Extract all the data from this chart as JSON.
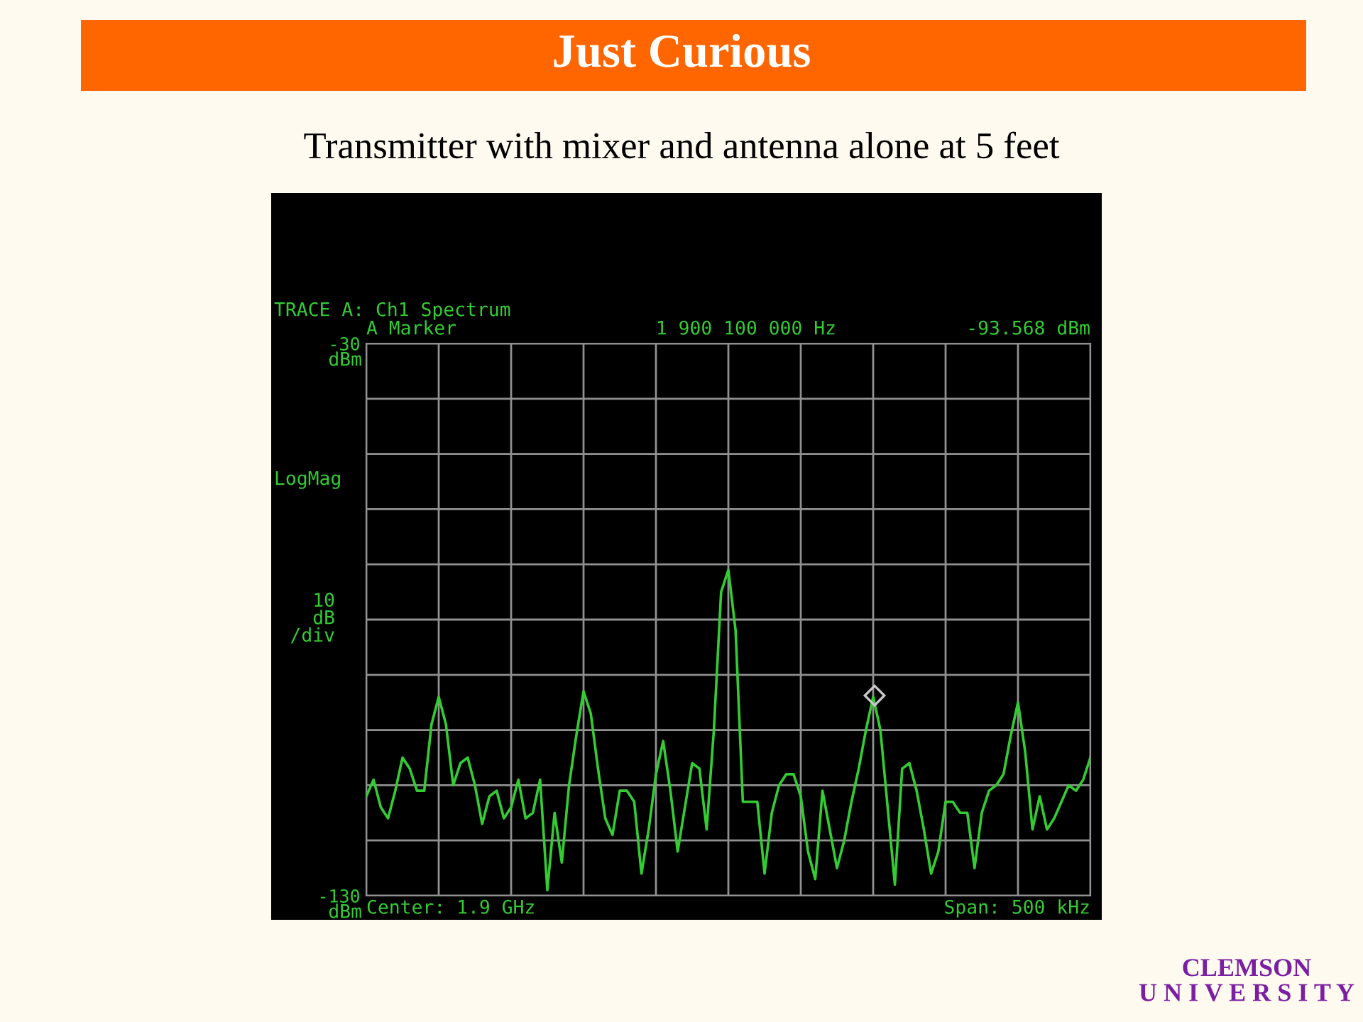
{
  "chart_data": {
    "type": "line",
    "title": "Just Curious",
    "subtitle": "Transmitter with mixer and antenna alone at 5 feet",
    "categories": [
      null,
      null,
      null,
      null,
      null,
      null,
      null,
      null,
      null,
      null,
      null,
      null,
      null,
      null,
      null,
      null,
      null,
      null,
      null,
      null,
      null,
      null,
      null,
      null,
      null,
      null,
      null,
      null,
      null,
      null,
      null,
      null,
      null,
      null,
      null,
      null,
      null,
      null,
      null,
      null,
      null,
      null,
      null,
      null,
      null,
      null,
      null,
      null,
      null,
      null,
      null,
      null,
      null,
      null,
      null,
      null,
      null,
      null,
      null,
      null,
      null,
      null,
      null,
      null,
      null,
      null,
      null,
      null,
      null,
      null,
      null,
      null,
      null,
      null,
      null,
      null,
      null,
      null,
      null,
      null,
      null,
      null,
      null,
      null,
      null,
      null,
      null,
      null,
      null,
      null,
      null,
      null,
      null,
      null,
      null,
      null,
      null,
      null,
      null,
      null,
      null
    ],
    "series": [
      {
        "color": "#33cc33",
        "values": [
          -112,
          -109,
          -114,
          -116,
          -111,
          -105,
          -107,
          -111,
          -111,
          -99,
          -94,
          -99,
          -110,
          -106,
          -105,
          -110,
          -117,
          -112,
          -111,
          -116,
          -114,
          -109,
          -116,
          -115,
          -109,
          -129,
          -115,
          -124,
          -110,
          -101,
          -93,
          -97,
          -107,
          -116,
          -119,
          -111,
          -111,
          -113,
          -126,
          -118,
          -108,
          -102,
          -111,
          -122,
          -114,
          -106,
          -107,
          -118,
          -100,
          -75,
          -71,
          -82,
          -113,
          -113,
          -113,
          -126,
          -115,
          -110,
          -108,
          -108,
          -112,
          -122,
          -127,
          -111,
          -118,
          -125,
          -120,
          -113,
          -107,
          -100,
          -94,
          -100,
          -114,
          -128,
          -107,
          -106,
          -111,
          -118,
          -126,
          -122,
          -113,
          -113,
          -115,
          -115,
          -125,
          -115,
          -111,
          -110,
          -108,
          -101,
          -95,
          -104,
          -118,
          -112,
          -118,
          -116,
          -113,
          -110,
          -111,
          -109,
          -105
        ]
      }
    ],
    "ylim": [
      -130,
      -30
    ],
    "yticks": [
      -30,
      {
        "value": -40,
        "label": null
      },
      {
        "value": -50,
        "label": null
      },
      {
        "value": -60,
        "label": null
      },
      {
        "value": -70,
        "label": null
      },
      {
        "value": -80,
        "label": null
      },
      {
        "value": -90,
        "label": null
      },
      {
        "value": -100,
        "label": null
      },
      {
        "value": -110,
        "label": null
      },
      {
        "value": -120,
        "label": null
      },
      -130
    ],
    "grid": true,
    "annotations": [
      "TRACE A: Ch1 Spectrum",
      "A Marker",
      "1 900 100 000 Hz",
      "-93.568 dBm",
      "LogMag",
      "10\ndB\n/div",
      "Center: 1.9 GHz",
      "Span: 500 kHz",
      "CLEMSON\nU N I V E R S I T Y",
      "dBm",
      "dBm"
    ]
  }
}
